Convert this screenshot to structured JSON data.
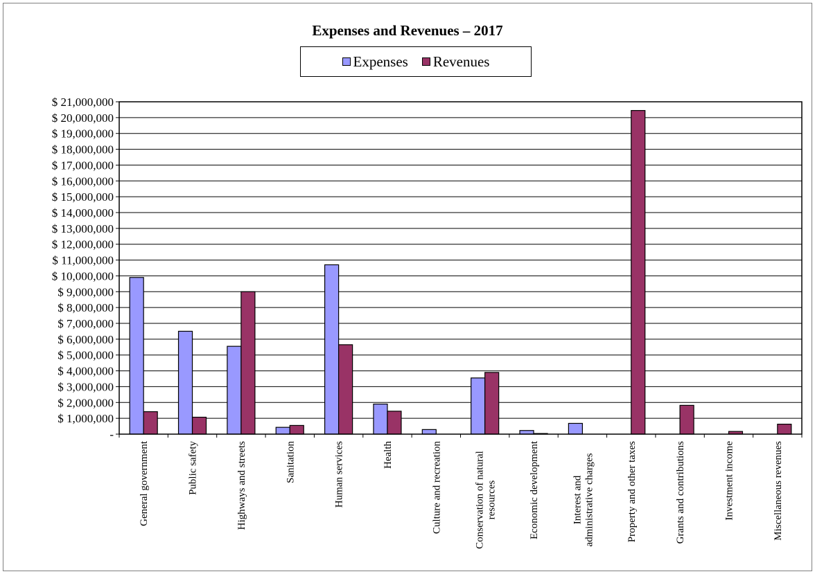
{
  "chart_data": {
    "type": "bar",
    "title": "Expenses and Revenues – 2017",
    "xlabel": "",
    "ylabel": "",
    "ylim": [
      0,
      21000000
    ],
    "ytick_step": 1000000,
    "grid": true,
    "legend_position": "top-center",
    "categories": [
      "General government",
      "Public safety",
      "Highways and streets",
      "Sanitation",
      "Human services",
      "Health",
      "Culture and recreation",
      "Conservation of natural resources",
      "Economic development",
      "Interest and administrative charges",
      "Property and other taxes",
      "Grants and contributions",
      "Investment income",
      "Miscellaneous revenues"
    ],
    "series": [
      {
        "name": "Expenses",
        "color": "#9999ff",
        "values": [
          9900000,
          6500000,
          5550000,
          430000,
          10700000,
          1900000,
          290000,
          3550000,
          230000,
          680000,
          0,
          0,
          0,
          0
        ]
      },
      {
        "name": "Revenues",
        "color": "#993366",
        "values": [
          1420000,
          1070000,
          9000000,
          550000,
          5650000,
          1450000,
          0,
          3900000,
          40000,
          0,
          20450000,
          1820000,
          170000,
          630000
        ]
      }
    ]
  }
}
